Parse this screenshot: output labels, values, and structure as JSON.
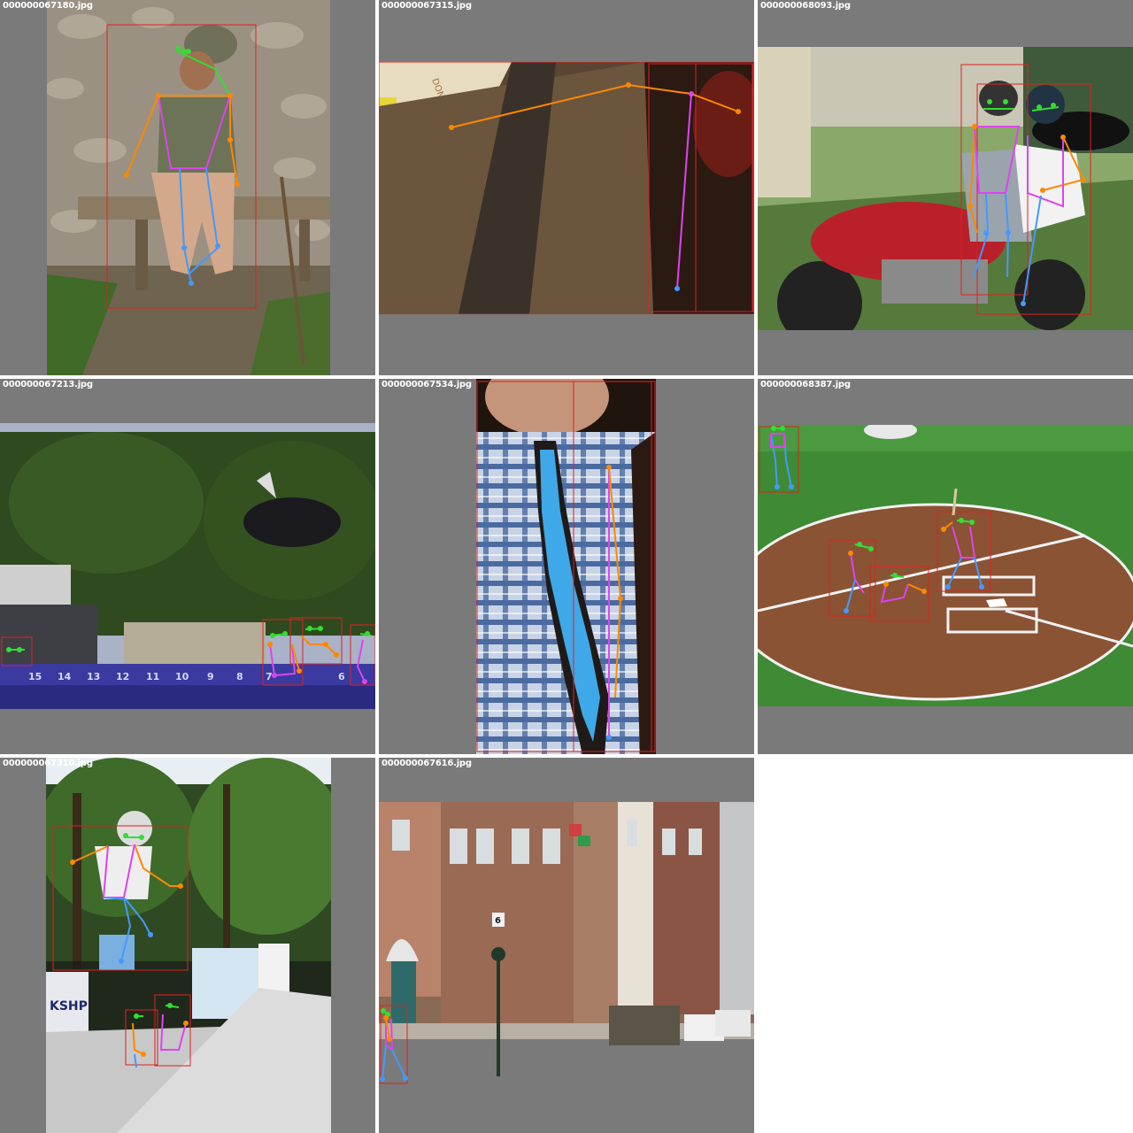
{
  "grid": {
    "tiles": [
      {
        "filename": "000000067180.jpg",
        "scene": "woman-on-bench"
      },
      {
        "filename": "000000067315.jpg",
        "scene": "shirt-and-tie"
      },
      {
        "filename": "000000068093.jpg",
        "scene": "motorcycle-riders"
      },
      {
        "filename": "000000067213.jpg",
        "scene": "dog-jump-pool"
      },
      {
        "filename": "000000067534.jpg",
        "scene": "plaid-shirt-pixel-tie"
      },
      {
        "filename": "000000068387.jpg",
        "scene": "baseball-home-plate"
      },
      {
        "filename": "000000067310.jpg",
        "scene": "skateboard-trick"
      },
      {
        "filename": "000000067616.jpg",
        "scene": "city-street"
      }
    ]
  },
  "overlay_colors": {
    "bbox": "#e02020",
    "head": "#33dd33",
    "arms": "#ff8800",
    "torso": "#dd44ee",
    "legs": "#4499ff",
    "padding": "#7a7a7a"
  },
  "pool_lane_numbers": [
    "15",
    "14",
    "13",
    "12",
    "11",
    "10",
    "9",
    "8",
    "7",
    "6"
  ],
  "signs": {
    "skate_banner": "KSHP",
    "street_sign": "6",
    "mural_text": "DONE THE"
  }
}
